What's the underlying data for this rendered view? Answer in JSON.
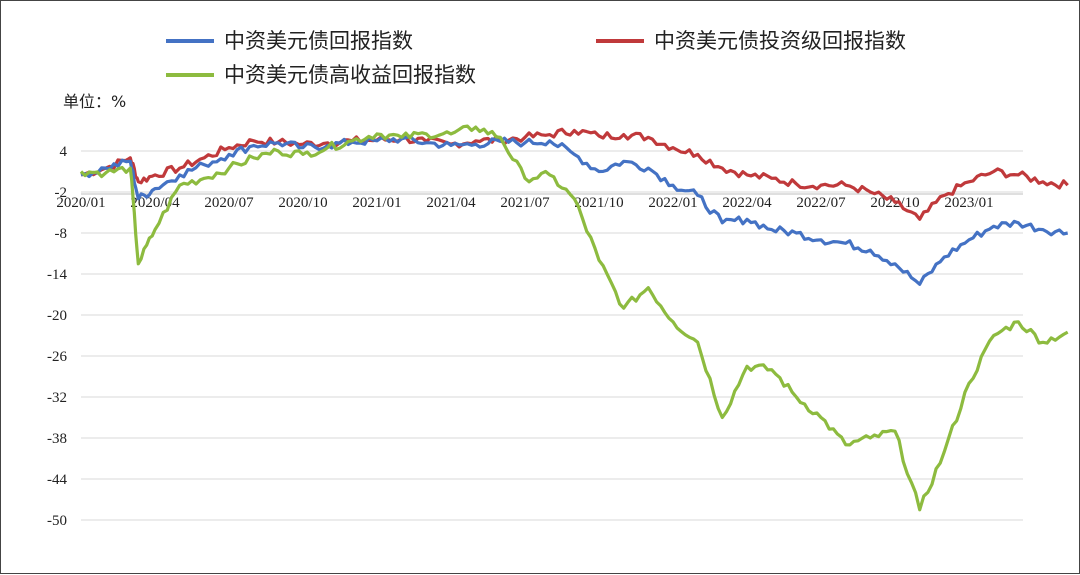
{
  "chart_data": {
    "type": "line",
    "unit_label": "单位：%",
    "yticks": [
      4,
      -2,
      -8,
      -14,
      -20,
      -26,
      -32,
      -38,
      -44,
      -50
    ],
    "ylim": [
      -52,
      7
    ],
    "xticks": [
      "2020/01",
      "2020/04",
      "2020/07",
      "2020/10",
      "2021/01",
      "2021/04",
      "2021/07",
      "2021/10",
      "2022/01",
      "2022/04",
      "2022/07",
      "2022/10",
      "2023/01"
    ],
    "grid": "horizontal",
    "legend_position": "top",
    "series": [
      {
        "name": "中资美元债回报指数",
        "color": "#4472C4",
        "points": [
          [
            "2020/01",
            0.5
          ],
          [
            "2020/02",
            1.5
          ],
          [
            "2020/03",
            2.5
          ],
          [
            "2020/03",
            -3.0
          ],
          [
            "2020/04",
            -1.5
          ],
          [
            "2020/05",
            0.5
          ],
          [
            "2020/06",
            2.0
          ],
          [
            "2020/07",
            3.5
          ],
          [
            "2020/08",
            4.8
          ],
          [
            "2020/09",
            5.2
          ],
          [
            "2020/10",
            4.5
          ],
          [
            "2020/11",
            4.8
          ],
          [
            "2020/12",
            5.3
          ],
          [
            "2021/01",
            5.5
          ],
          [
            "2021/02",
            5.8
          ],
          [
            "2021/03",
            5.2
          ],
          [
            "2021/04",
            4.8
          ],
          [
            "2021/05",
            5.0
          ],
          [
            "2021/06",
            5.4
          ],
          [
            "2021/07",
            5.2
          ],
          [
            "2021/08",
            5.5
          ],
          [
            "2021/09",
            3.5
          ],
          [
            "2021/10",
            1.0
          ],
          [
            "2021/11",
            2.5
          ],
          [
            "2021/12",
            1.5
          ],
          [
            "2022/01",
            -1.0
          ],
          [
            "2022/02",
            -2.5
          ],
          [
            "2022/03",
            -6.5
          ],
          [
            "2022/04",
            -6.0
          ],
          [
            "2022/05",
            -7.5
          ],
          [
            "2022/06",
            -8.0
          ],
          [
            "2022/07",
            -9.0
          ],
          [
            "2022/08",
            -9.5
          ],
          [
            "2022/09",
            -10.5
          ],
          [
            "2022/10",
            -12.5
          ],
          [
            "2022/11",
            -15.5
          ],
          [
            "2022/12",
            -11.5
          ],
          [
            "2023/01",
            -9.0
          ],
          [
            "2023/02",
            -7.0
          ],
          [
            "2023/03",
            -6.5
          ],
          [
            "2023/04",
            -7.5
          ],
          [
            "2023/05",
            -8.0
          ]
        ]
      },
      {
        "name": "中资美元债投资级回报指数",
        "color": "#C0393B",
        "points": [
          [
            "2020/01",
            0.5
          ],
          [
            "2020/02",
            1.5
          ],
          [
            "2020/03",
            3.0
          ],
          [
            "2020/03",
            -0.5
          ],
          [
            "2020/04",
            0.5
          ],
          [
            "2020/05",
            1.5
          ],
          [
            "2020/06",
            3.0
          ],
          [
            "2020/07",
            4.5
          ],
          [
            "2020/08",
            5.5
          ],
          [
            "2020/09",
            5.3
          ],
          [
            "2020/10",
            5.0
          ],
          [
            "2020/11",
            5.2
          ],
          [
            "2020/12",
            5.5
          ],
          [
            "2021/01",
            5.6
          ],
          [
            "2021/02",
            5.8
          ],
          [
            "2021/03",
            5.4
          ],
          [
            "2021/04",
            5.0
          ],
          [
            "2021/05",
            5.5
          ],
          [
            "2021/06",
            5.6
          ],
          [
            "2021/07",
            6.0
          ],
          [
            "2021/08",
            6.4
          ],
          [
            "2021/09",
            7.0
          ],
          [
            "2021/10",
            6.2
          ],
          [
            "2021/11",
            6.4
          ],
          [
            "2021/12",
            6.0
          ],
          [
            "2022/01",
            4.5
          ],
          [
            "2022/02",
            3.5
          ],
          [
            "2022/03",
            1.5
          ],
          [
            "2022/04",
            0.5
          ],
          [
            "2022/05",
            0.0
          ],
          [
            "2022/06",
            -0.8
          ],
          [
            "2022/07",
            -1.0
          ],
          [
            "2022/08",
            -1.0
          ],
          [
            "2022/09",
            -2.0
          ],
          [
            "2022/10",
            -3.5
          ],
          [
            "2022/11",
            -6.0
          ],
          [
            "2022/12",
            -2.5
          ],
          [
            "2023/01",
            -0.5
          ],
          [
            "2023/02",
            1.0
          ],
          [
            "2023/03",
            0.5
          ],
          [
            "2023/04",
            -0.5
          ],
          [
            "2023/05",
            -1.0
          ]
        ]
      },
      {
        "name": "中资美元债高收益回报指数",
        "color": "#8DBB3F",
        "points": [
          [
            "2020/01",
            1.0
          ],
          [
            "2020/02",
            0.8
          ],
          [
            "2020/03",
            1.5
          ],
          [
            "2020/03",
            -12.5
          ],
          [
            "2020/04",
            -7.5
          ],
          [
            "2020/05",
            -1.0
          ],
          [
            "2020/06",
            0.0
          ],
          [
            "2020/07",
            1.5
          ],
          [
            "2020/08",
            3.0
          ],
          [
            "2020/09",
            4.0
          ],
          [
            "2020/10",
            3.5
          ],
          [
            "2020/11",
            4.5
          ],
          [
            "2020/12",
            5.5
          ],
          [
            "2021/01",
            6.5
          ],
          [
            "2021/02",
            6.0
          ],
          [
            "2021/03",
            6.5
          ],
          [
            "2021/04",
            6.5
          ],
          [
            "2021/05",
            7.5
          ],
          [
            "2021/06",
            6.0
          ],
          [
            "2021/07",
            0.0
          ],
          [
            "2021/08",
            0.5
          ],
          [
            "2021/09",
            -3.0
          ],
          [
            "2021/10",
            -12.0
          ],
          [
            "2021/11",
            -19.0
          ],
          [
            "2021/12",
            -16.0
          ],
          [
            "2022/01",
            -21.0
          ],
          [
            "2022/02",
            -24.0
          ],
          [
            "2022/03",
            -35.0
          ],
          [
            "2022/04",
            -27.5
          ],
          [
            "2022/05",
            -28.0
          ],
          [
            "2022/06",
            -32.0
          ],
          [
            "2022/07",
            -35.0
          ],
          [
            "2022/08",
            -39.0
          ],
          [
            "2022/09",
            -38.0
          ],
          [
            "2022/10",
            -37.0
          ],
          [
            "2022/11",
            -48.5
          ],
          [
            "2022/12",
            -40.0
          ],
          [
            "2023/01",
            -30.0
          ],
          [
            "2023/02",
            -23.0
          ],
          [
            "2023/03",
            -21.0
          ],
          [
            "2023/04",
            -24.0
          ],
          [
            "2023/05",
            -22.5
          ]
        ]
      }
    ]
  }
}
